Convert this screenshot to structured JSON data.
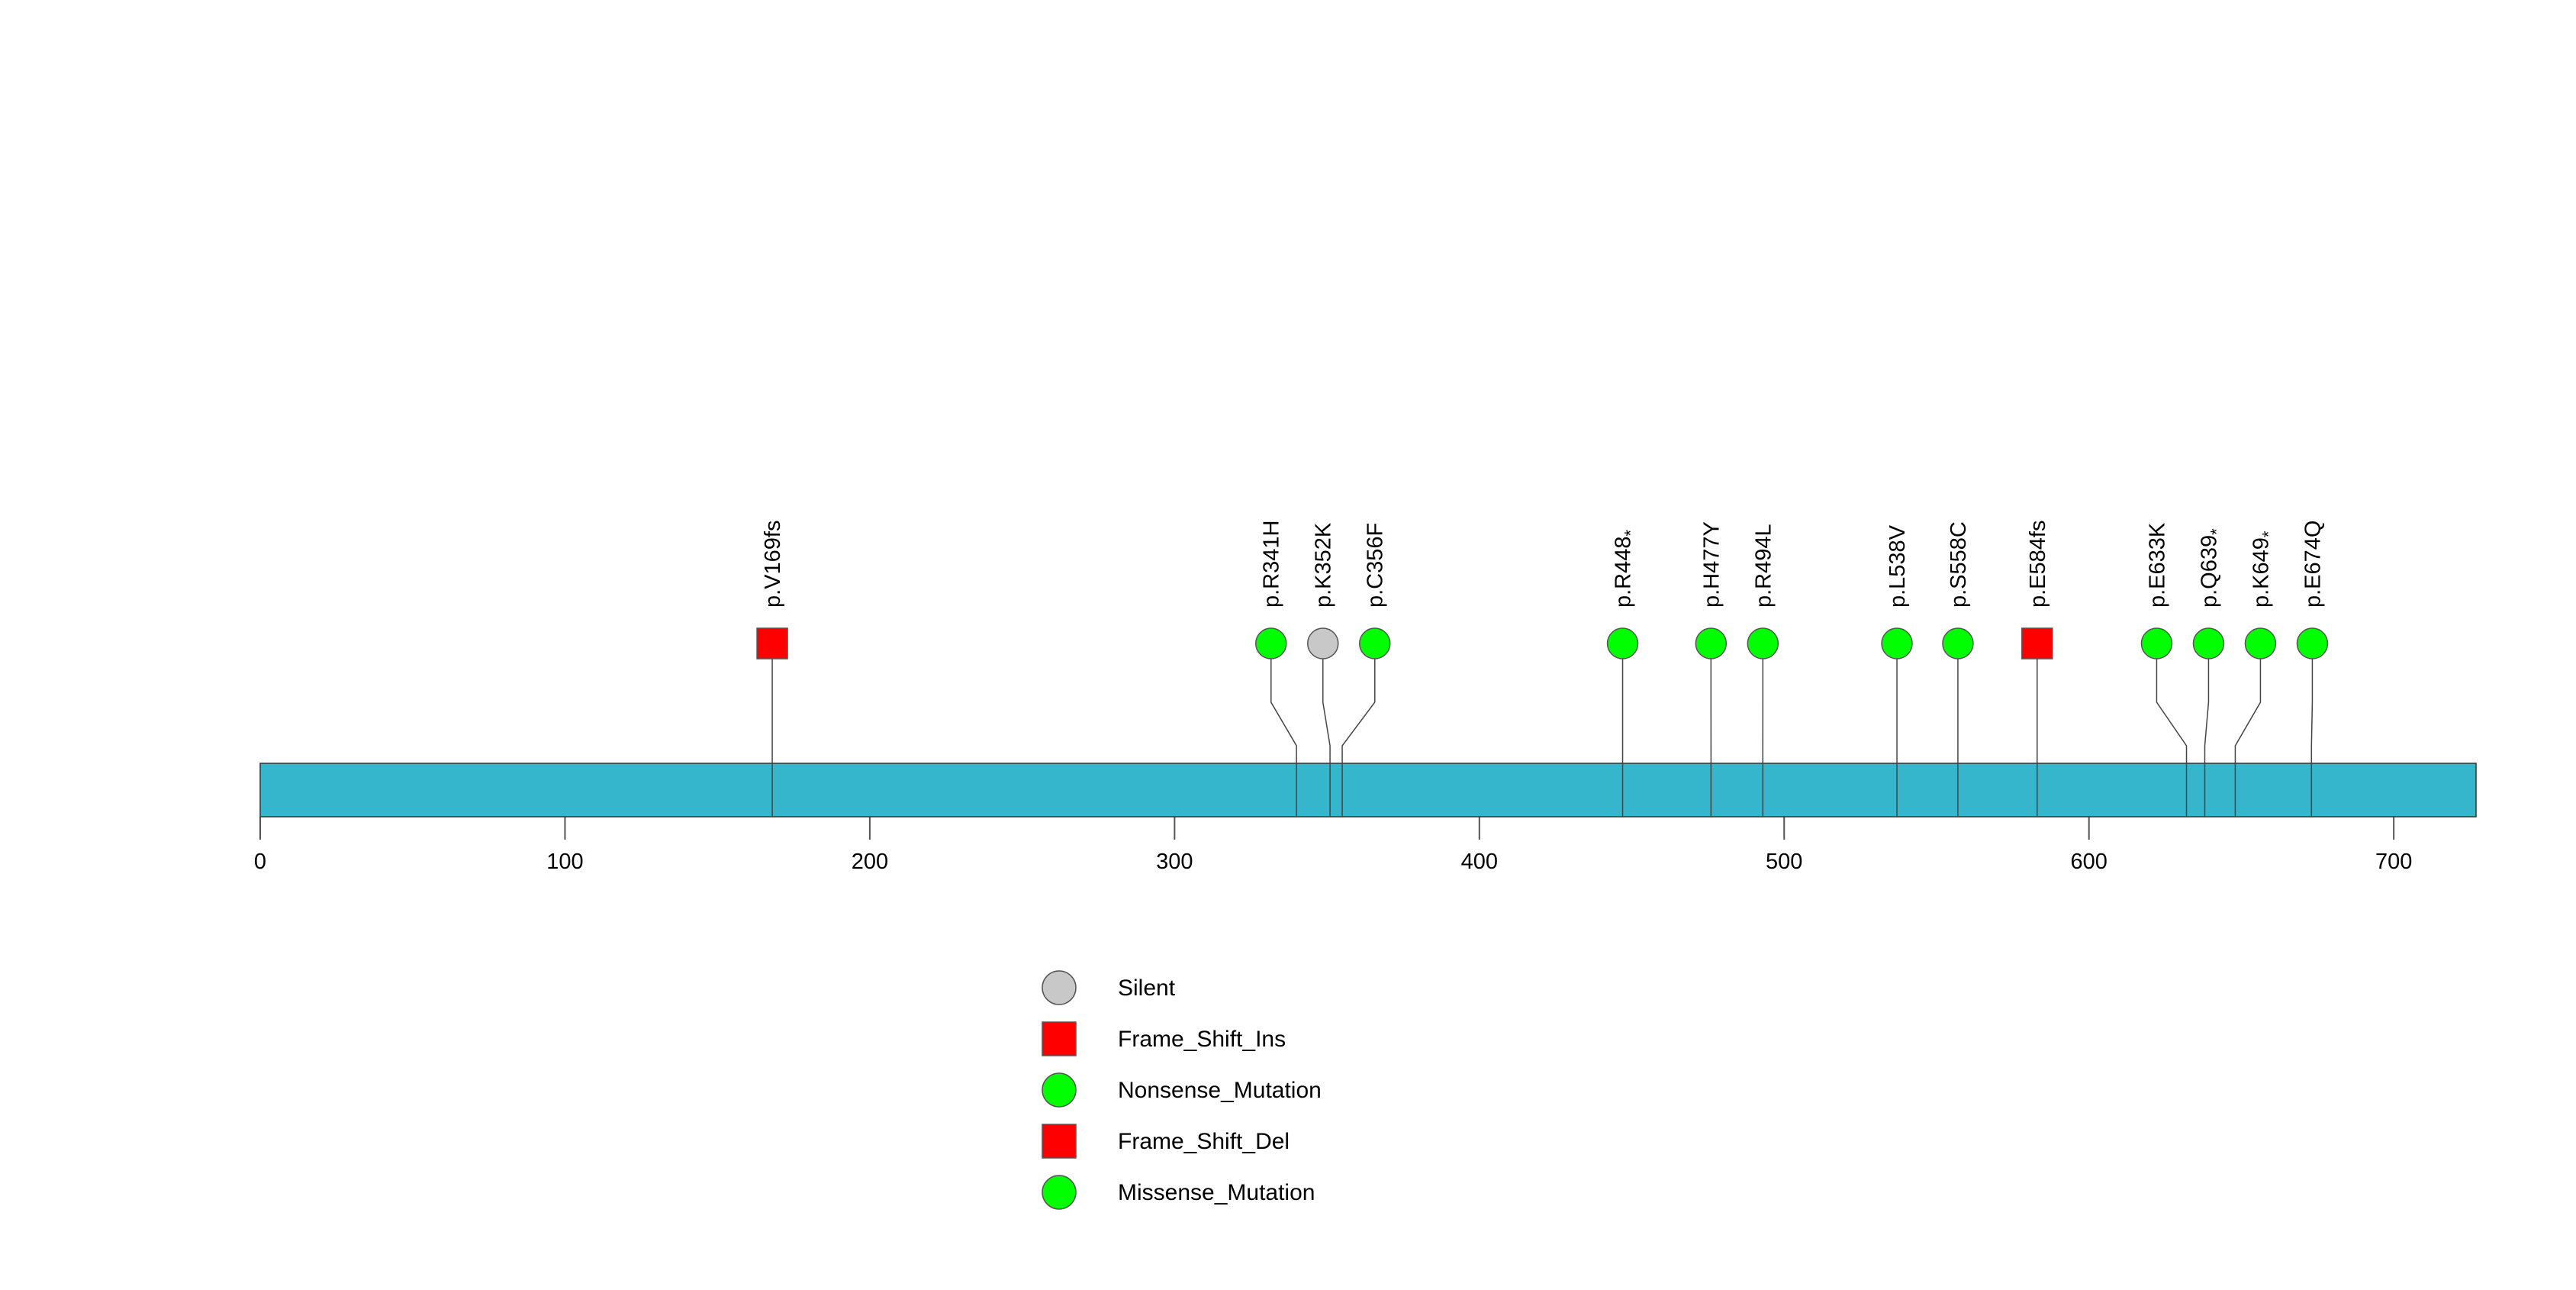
{
  "chart_data": {
    "type": "lollipop",
    "title": "",
    "xlabel": "",
    "ylabel": "",
    "xlim": [
      0,
      727
    ],
    "ticks": [
      0,
      100,
      200,
      300,
      400,
      500,
      600,
      700
    ],
    "tick_labels": [
      "0",
      "100",
      "200",
      "300",
      "400",
      "500",
      "600",
      "700"
    ],
    "protein_length": 727,
    "protein_color": "#36b6cc",
    "mutations": [
      {
        "label": "p.V169fs",
        "label_base": "p.V169fs",
        "label_sup": "",
        "position": 168,
        "type": "Frame_Shift_Ins"
      },
      {
        "label": "p.R341H",
        "label_base": "p.R341H",
        "label_sup": "",
        "position": 340,
        "type": "Missense_Mutation"
      },
      {
        "label": "p.K352K",
        "label_base": "p.K352K",
        "label_sup": "",
        "position": 351,
        "type": "Silent"
      },
      {
        "label": "p.C356F",
        "label_base": "p.C356F",
        "label_sup": "",
        "position": 355,
        "type": "Missense_Mutation"
      },
      {
        "label": "p.R448*",
        "label_base": "p.R448",
        "label_sup": "*",
        "position": 447,
        "type": "Nonsense_Mutation"
      },
      {
        "label": "p.H477Y",
        "label_base": "p.H477Y",
        "label_sup": "",
        "position": 476,
        "type": "Missense_Mutation"
      },
      {
        "label": "p.R494L",
        "label_base": "p.R494L",
        "label_sup": "",
        "position": 493,
        "type": "Missense_Mutation"
      },
      {
        "label": "p.L538V",
        "label_base": "p.L538V",
        "label_sup": "",
        "position": 537,
        "type": "Missense_Mutation"
      },
      {
        "label": "p.S558C",
        "label_base": "p.S558C",
        "label_sup": "",
        "position": 557,
        "type": "Missense_Mutation"
      },
      {
        "label": "p.E584fs",
        "label_base": "p.E584fs",
        "label_sup": "",
        "position": 583,
        "type": "Frame_Shift_Del"
      },
      {
        "label": "p.E633K",
        "label_base": "p.E633K",
        "label_sup": "",
        "position": 632,
        "type": "Missense_Mutation"
      },
      {
        "label": "p.Q639*",
        "label_base": "p.Q639",
        "label_sup": "*",
        "position": 638,
        "type": "Nonsense_Mutation"
      },
      {
        "label": "p.K649*",
        "label_base": "p.K649",
        "label_sup": "*",
        "position": 648,
        "type": "Nonsense_Mutation"
      },
      {
        "label": "p.E674Q",
        "label_base": "p.E674Q",
        "label_sup": "",
        "position": 673,
        "type": "Missense_Mutation"
      }
    ],
    "legend": [
      {
        "label": "Silent",
        "shape": "circle",
        "color": "#c8c8c8"
      },
      {
        "label": "Frame_Shift_Ins",
        "shape": "square",
        "color": "#ff0000"
      },
      {
        "label": "Nonsense_Mutation",
        "shape": "circle",
        "color": "#00ff00"
      },
      {
        "label": "Frame_Shift_Del",
        "shape": "square",
        "color": "#ff0000"
      },
      {
        "label": "Missense_Mutation",
        "shape": "circle",
        "color": "#00ff00"
      }
    ],
    "legend_position": "bottom-center"
  }
}
